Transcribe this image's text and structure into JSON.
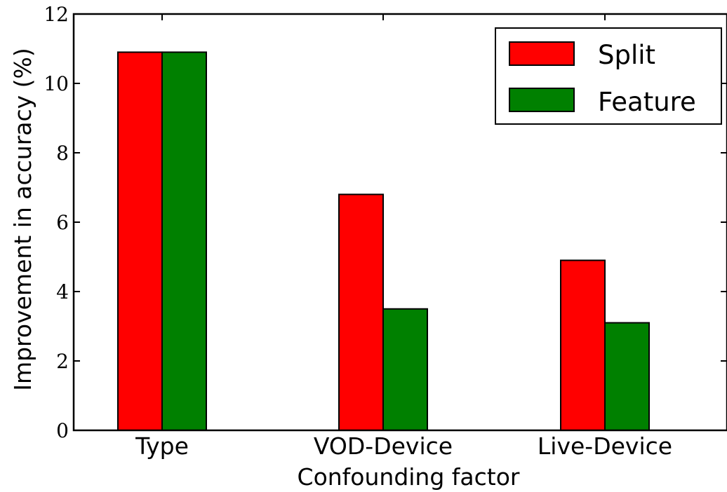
{
  "chart_data": {
    "type": "bar",
    "categories": [
      "Type",
      "VOD-Device",
      "Live-Device"
    ],
    "series": [
      {
        "name": "Split",
        "color": "#ff0000",
        "values": [
          10.9,
          6.8,
          4.9
        ]
      },
      {
        "name": "Feature",
        "color": "#008000",
        "values": [
          10.9,
          3.5,
          3.1
        ]
      }
    ],
    "xlabel": "Confounding factor",
    "ylabel": "Improvement in accuracy (%)",
    "ylim": [
      0,
      12
    ],
    "yticks": [
      "0",
      "2",
      "4",
      "6",
      "8",
      "10",
      "12"
    ],
    "grid": false,
    "legend_position": "top-right"
  }
}
